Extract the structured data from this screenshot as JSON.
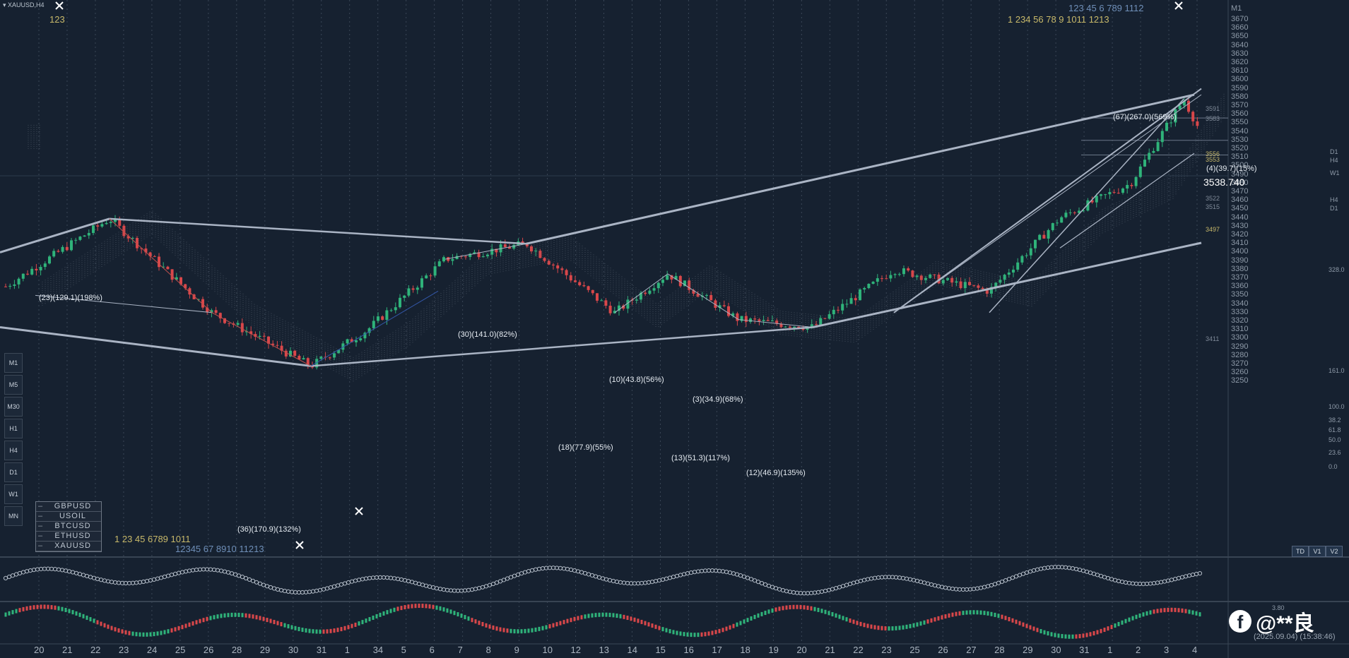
{
  "title": "XAUUSD,H4",
  "current_price": "3538.740",
  "price_axis": [
    "M1",
    "3670",
    "3660",
    "3650",
    "3640",
    "3630",
    "3620",
    "3610",
    "3600",
    "3590",
    "3580",
    "3570",
    "3560",
    "3550",
    "3540",
    "3530",
    "3520",
    "3510",
    "3500",
    "3490",
    "3480",
    "3470",
    "3460",
    "3450",
    "3440",
    "3430",
    "3420",
    "3410",
    "3400",
    "3390",
    "3380",
    "3370",
    "3360",
    "3350",
    "3340",
    "3330",
    "3320",
    "3310",
    "3300",
    "3290",
    "3280",
    "3270",
    "3260",
    "3250"
  ],
  "dates": [
    "20",
    "21",
    "22",
    "23",
    "24",
    "25",
    "26",
    "28",
    "29",
    "30",
    "31",
    "1",
    "34",
    "5",
    "6",
    "7",
    "8",
    "9",
    "10",
    "12",
    "13",
    "14",
    "15",
    "16",
    "17",
    "18",
    "19",
    "20",
    "21",
    "22",
    "23",
    "25",
    "26",
    "27",
    "28",
    "29",
    "30",
    "31",
    "1",
    "2",
    "3",
    "4"
  ],
  "symbols": [
    "GBPUSD",
    "USOIL",
    "BTCUSD",
    "ETHUSD",
    "XAUUSD"
  ],
  "timeframes": [
    "M1",
    "M5",
    "M30",
    "H1",
    "H4",
    "D1",
    "W1",
    "MN"
  ],
  "mode_buttons": [
    "TD",
    "V1",
    "V2"
  ],
  "annotations": [
    "(23)(129.1)(198%)",
    "(30)(141.0)(82%)",
    "(10)(43.8)(56%)",
    "(3)(34.9)(68%)",
    "(18)(77.9)(55%)",
    "(13)(51.3)(117%)",
    "(12)(46.9)(135%)",
    "(36)(170.9)(132%)",
    "(67)(267.0)(569%)",
    "(4)(39.7)(15%)"
  ],
  "right_levels": [
    "3591",
    "3583",
    "3556",
    "3553",
    "3522",
    "3515",
    "3497",
    "3411"
  ],
  "right_tags": [
    "D1",
    "H4",
    "W1",
    "H4",
    "D1"
  ],
  "fib_levels": [
    "328.0",
    "161.0",
    "100.0",
    "38.2",
    "61.8",
    "50.0",
    "23.6",
    "0.0"
  ],
  "top_counts_blue": "123   45       6     789   1112",
  "top_counts_yellow": "1    234       56    78        9    1011    1213",
  "bottom_counts_yellow": "1  23     45        6789       1011",
  "bottom_counts_blue": "12345         67                    8910      11213",
  "left_count": "123",
  "watermark": "@**良",
  "timestamp": "(2025.09.04) (15:38:46)",
  "mini_right": "3.80",
  "colors": {
    "bg": "#162130",
    "bull": "#2fb37a",
    "bear": "#d9474a",
    "line": "#aab4c4",
    "grid": "#3a4656"
  }
}
